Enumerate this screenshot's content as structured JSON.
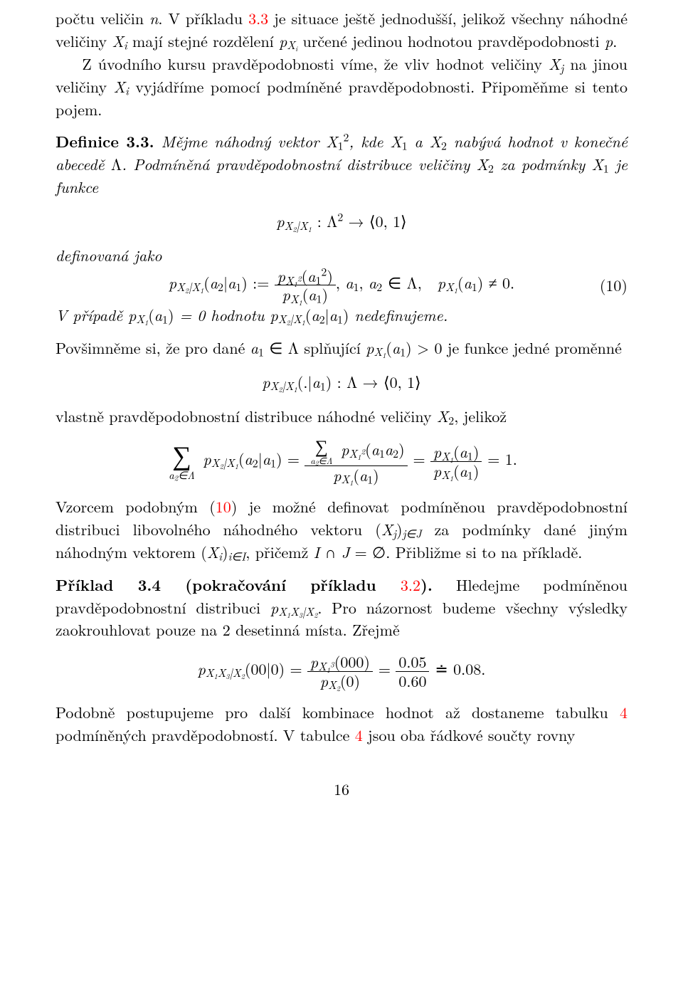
{
  "para1": {
    "t1": "počtu veličin ",
    "t2": ". V příkladu ",
    "ref1": "3.3",
    "t3": " je situace ještě jednodušší, jelikož všechny náhodné veličiny ",
    "t4": " mají stejné rozdělení ",
    "t5": " určené jedinou hodnotou pravděpodobnosti ",
    "t6": "."
  },
  "para2": {
    "t1": "Z úvodního kursu pravděpodobnosti víme, že vliv hodnot veličiny ",
    "t2": " na jinou veličiny ",
    "t3": " vyjádříme pomocí podmíněné pravděpodobnosti. Připoměňme si tento pojem."
  },
  "def": {
    "head": "Definice 3.3.",
    "t1": " Mějme náhodný vektor ",
    "t2": ", kde ",
    "t3": " a ",
    "t4": " nabývá hodnot v konečné abecedě ",
    "t5": ". Podmíněná pravděpodobnostní distribuce veličiny ",
    "t6": " za podmínky ",
    "t7": " je funkce",
    "t8": "definovaná jako"
  },
  "disp1": {
    "lhs": "p",
    "arrow": " → ",
    "codomain": "⟨0, 1⟩"
  },
  "eqno": "(10)",
  "disp2_tail": ",   ",
  "disp2_cond": " ≠ 0.",
  "def_tail": {
    "t1": "V případě ",
    "t2": " = 0 hodnotu ",
    "t3": " nedefinujeme."
  },
  "para3": {
    "t1": "Povšimněme si, že pro dané ",
    "t2": " splňující ",
    "t3": " > 0 je funkce jedné proměnné"
  },
  "disp3": {
    "arrow": " → ",
    "codomain": "⟨0, 1⟩"
  },
  "para4": {
    "t1": "vlastně pravděpodobnostní distribuce náhodné veličiny ",
    "t2": ", jelikož"
  },
  "para5": {
    "t1": "Vzorcem podobným (",
    "ref1": "10",
    "t2": ") je možné definovat podmíněnou pravděpodobnostní distribuci libovolného náhodného vektoru ",
    "t3": " za podmínky dané jiným náhodným vektorem ",
    "t4": ", přičemž ",
    "t5": ". Přibližme si to na příkladě."
  },
  "ex": {
    "head": "Příklad 3.4 (pokračování příkladu ",
    "ref1": "3.2",
    "head2": ").",
    "t1": " Hledejme podmíněnou pravděpodobnostní distribuci ",
    "t2": ". Pro názornost budeme všechny výsledky zaokrouhlovat pouze na 2 desetinná místa. Zřejmě"
  },
  "disp5": {
    "lhs_arg": "(00|0) = ",
    "num_arg": "(000)",
    "den_arg": "(0)",
    "eq1": " = ",
    "frac2_num": "0.05",
    "frac2_den": "0.60",
    "doteq": " ≐ ",
    "res": "0.08."
  },
  "para6": {
    "t1": "Podobně postupujeme pro další kombinace hodnot až dostaneme tabulku ",
    "ref1": "4",
    "t2": " podmíněných pravděpodobností. V tabulce ",
    "ref2": "4",
    "t3": " jsou oba řádkové součty rovny"
  },
  "pagenum": "16"
}
